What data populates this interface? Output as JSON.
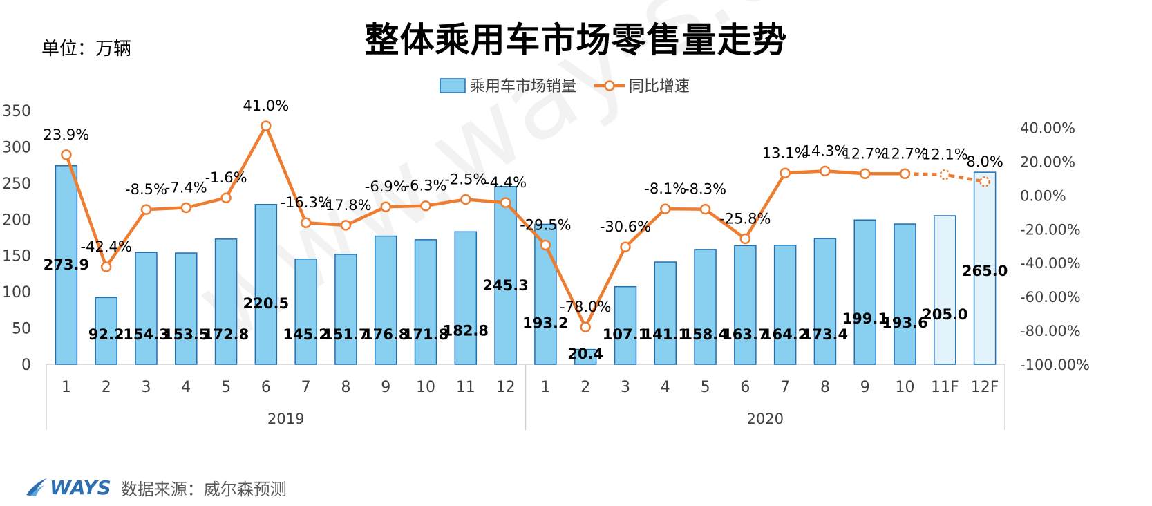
{
  "unit_label": "单位：万辆",
  "source": {
    "logo_text": "WAYS",
    "text": "数据来源：威尔森预测"
  },
  "watermark": "www.way-s.cn",
  "colors": {
    "bar_fill": "#89cff0",
    "bar_stroke": "#1f6fb2",
    "bar_forecast_fill": "#e3f3fb",
    "line": "#ed7d31",
    "axis": "#d0d0d0"
  },
  "chart_data": {
    "type": "bar",
    "title": "整体乘用车市场零售量走势",
    "categories": [
      "1",
      "2",
      "3",
      "4",
      "5",
      "6",
      "7",
      "8",
      "9",
      "10",
      "11",
      "12",
      "1",
      "2",
      "3",
      "4",
      "5",
      "6",
      "7",
      "8",
      "9",
      "10",
      "11F",
      "12F"
    ],
    "groups": [
      {
        "label": "2019",
        "count": 12
      },
      {
        "label": "2020",
        "count": 12
      }
    ],
    "forecast_categories": [
      "11F",
      "12F"
    ],
    "legend": {
      "position": "top-center"
    },
    "y_left": {
      "range": [
        0,
        350
      ],
      "ticks": [
        "0",
        "50",
        "100",
        "150",
        "200",
        "250",
        "300",
        "350"
      ]
    },
    "y_right": {
      "range": [
        -100,
        50
      ],
      "ticks": [
        "-100.00%",
        "-80.00%",
        "-60.00%",
        "-40.00%",
        "-20.00%",
        "0.00%",
        "20.00%",
        "40.00%"
      ]
    },
    "series": [
      {
        "name": "乘用车市场销量",
        "type": "bar",
        "axis": "left",
        "values": [
          273.9,
          92.2,
          154.3,
          153.5,
          172.8,
          220.5,
          145.2,
          151.7,
          176.8,
          171.8,
          182.8,
          245.3,
          193.2,
          20.4,
          107.1,
          141.1,
          158.4,
          163.7,
          164.2,
          173.4,
          199.1,
          193.6,
          205.0,
          265.0
        ],
        "labels": [
          "273.9",
          "92.2",
          "154.3",
          "153.5",
          "172.8",
          "220.5",
          "145.2",
          "151.7",
          "176.8",
          "171.8",
          "182.8",
          "245.3",
          "193.2",
          "20.4",
          "107.1",
          "141.1",
          "158.4",
          "163.7",
          "164.2",
          "173.4",
          "199.1",
          "193.6",
          "205.0",
          "265.0"
        ]
      },
      {
        "name": "同比增速",
        "type": "line",
        "axis": "right",
        "values": [
          23.9,
          -42.4,
          -8.5,
          -7.4,
          -1.6,
          41.0,
          -16.3,
          -17.8,
          -6.9,
          -6.3,
          -2.5,
          -4.4,
          -29.5,
          -78.0,
          -30.6,
          -8.1,
          -8.3,
          -25.8,
          13.1,
          14.3,
          12.7,
          12.7,
          12.1,
          8.0
        ],
        "labels": [
          "23.9%",
          "-42.4%",
          "-8.5%",
          "-7.4%",
          "-1.6%",
          "41.0%",
          "-16.3%",
          "-17.8%",
          "-6.9%",
          "-6.3%",
          "-2.5%",
          "-4.4%",
          "-29.5%",
          "-78.0%",
          "-30.6%",
          "-8.1%",
          "-8.3%",
          "-25.8%",
          "13.1%",
          "14.3%",
          "12.7%",
          "12.7%",
          "12.1%",
          "8.0%"
        ]
      }
    ]
  }
}
